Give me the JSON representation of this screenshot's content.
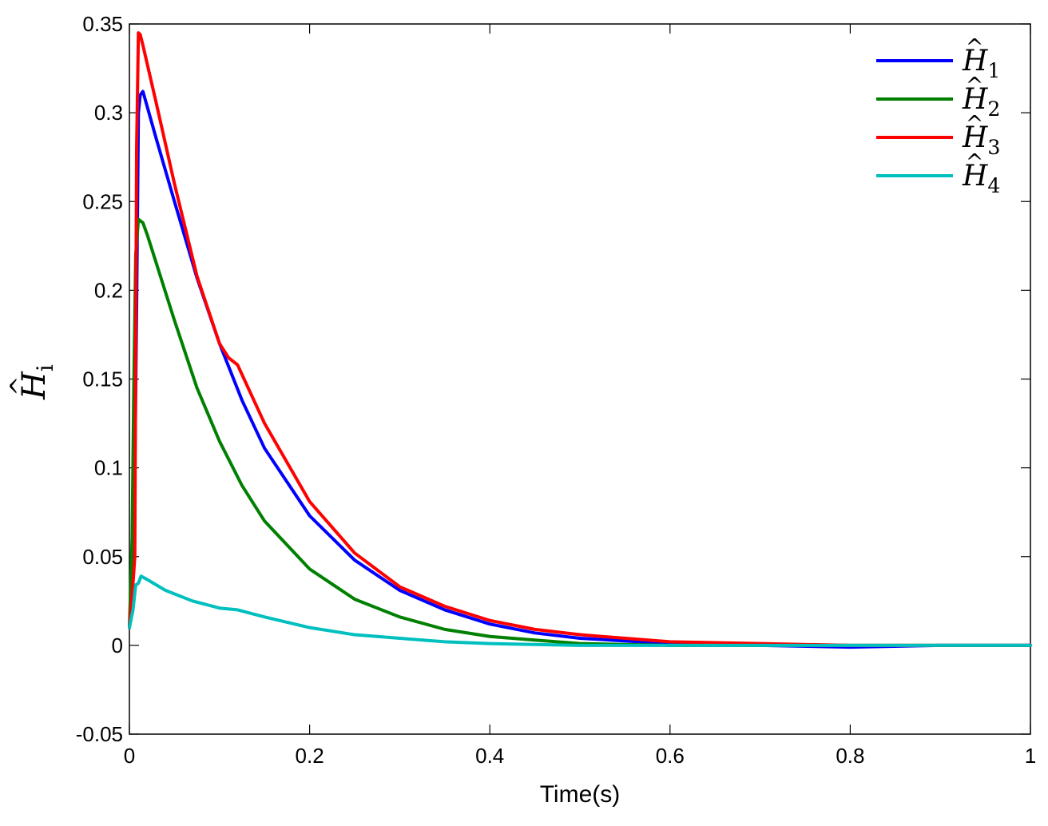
{
  "chart_data": {
    "type": "line",
    "xlabel": "Time(s)",
    "ylabel": {
      "base": "H",
      "hat": "^",
      "sub": "i"
    },
    "xlim": [
      0,
      1
    ],
    "ylim": [
      -0.05,
      0.35
    ],
    "xticks": [
      0,
      0.2,
      0.4,
      0.6,
      0.8,
      1
    ],
    "xtick_labels": [
      "0",
      "0.2",
      "0.4",
      "0.6",
      "0.8",
      "1"
    ],
    "yticks": [
      -0.05,
      0,
      0.05,
      0.1,
      0.15,
      0.2,
      0.25,
      0.3,
      0.35
    ],
    "ytick_labels": [
      "-0.05",
      "0",
      "0.05",
      "0.1",
      "0.15",
      "0.2",
      "0.25",
      "0.3",
      "0.35"
    ],
    "grid": false,
    "legend_position": "top-right",
    "series": [
      {
        "name": {
          "base": "H",
          "hat": "^",
          "sub": "1"
        },
        "color": "#0000ff",
        "x": [
          0,
          0.005,
          0.008,
          0.01,
          0.012,
          0.015,
          0.02,
          0.03,
          0.05,
          0.075,
          0.1,
          0.125,
          0.15,
          0.2,
          0.25,
          0.3,
          0.35,
          0.4,
          0.45,
          0.5,
          0.6,
          0.7,
          0.8,
          0.9,
          1.0
        ],
        "y": [
          0.01,
          0.05,
          0.19,
          0.3,
          0.31,
          0.312,
          0.303,
          0.285,
          0.25,
          0.207,
          0.17,
          0.138,
          0.111,
          0.073,
          0.048,
          0.031,
          0.02,
          0.012,
          0.007,
          0.004,
          0.001,
          0.0,
          -0.001,
          0.0,
          0.0
        ]
      },
      {
        "name": {
          "base": "H",
          "hat": "^",
          "sub": "2"
        },
        "color": "#008000",
        "x": [
          0,
          0.003,
          0.005,
          0.007,
          0.01,
          0.015,
          0.02,
          0.03,
          0.05,
          0.075,
          0.1,
          0.125,
          0.15,
          0.2,
          0.25,
          0.3,
          0.35,
          0.4,
          0.45,
          0.5,
          0.6,
          0.7,
          0.8,
          0.9,
          1.0
        ],
        "y": [
          0.01,
          0.06,
          0.15,
          0.22,
          0.24,
          0.238,
          0.231,
          0.215,
          0.183,
          0.145,
          0.115,
          0.09,
          0.07,
          0.043,
          0.026,
          0.016,
          0.009,
          0.005,
          0.003,
          0.001,
          0.0,
          0.0,
          0.0,
          0.0,
          0.0
        ]
      },
      {
        "name": {
          "base": "H",
          "hat": "^",
          "sub": "3"
        },
        "color": "#ff0000",
        "x": [
          0,
          0.004,
          0.006,
          0.008,
          0.01,
          0.012,
          0.015,
          0.02,
          0.03,
          0.05,
          0.075,
          0.1,
          0.11,
          0.12,
          0.15,
          0.2,
          0.25,
          0.3,
          0.35,
          0.4,
          0.45,
          0.5,
          0.6,
          0.7,
          0.8,
          0.9,
          1.0
        ],
        "y": [
          0.01,
          0.035,
          0.05,
          0.28,
          0.345,
          0.344,
          0.338,
          0.327,
          0.305,
          0.26,
          0.208,
          0.17,
          0.162,
          0.158,
          0.125,
          0.081,
          0.052,
          0.033,
          0.022,
          0.014,
          0.009,
          0.006,
          0.002,
          0.001,
          0.0,
          0.0,
          0.0
        ]
      },
      {
        "name": {
          "base": "H",
          "hat": "^",
          "sub": "4"
        },
        "color": "#00bfbf",
        "x": [
          0,
          0.004,
          0.007,
          0.01,
          0.013,
          0.02,
          0.04,
          0.07,
          0.1,
          0.12,
          0.15,
          0.2,
          0.25,
          0.3,
          0.35,
          0.4,
          0.5,
          0.6,
          0.7,
          0.8,
          0.9,
          1.0
        ],
        "y": [
          0.01,
          0.02,
          0.034,
          0.035,
          0.039,
          0.037,
          0.031,
          0.025,
          0.021,
          0.02,
          0.016,
          0.01,
          0.006,
          0.004,
          0.002,
          0.001,
          0.0,
          0.0,
          0.0,
          0.0,
          0.0,
          0.0
        ]
      }
    ]
  }
}
